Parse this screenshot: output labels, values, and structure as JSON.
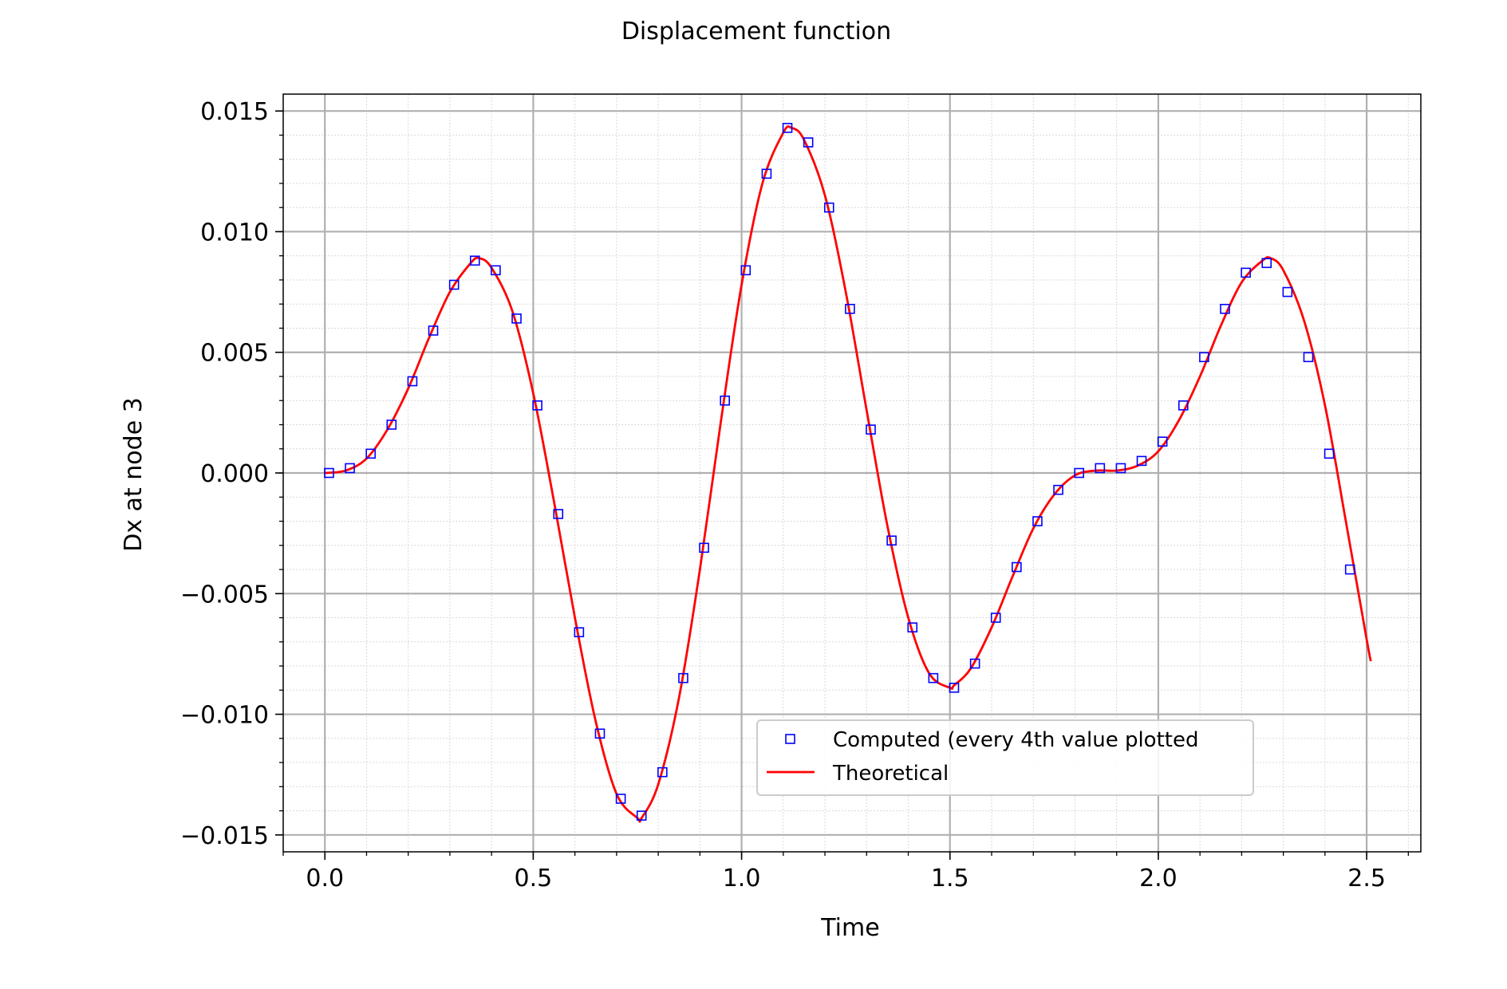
{
  "chart_data": {
    "type": "line",
    "title": "Displacement function",
    "xlabel": "Time",
    "ylabel": "Dx at node 3",
    "xlim": [
      -0.1,
      2.63
    ],
    "ylim": [
      -0.0157,
      0.0157
    ],
    "x_ticks": [
      0.0,
      0.5,
      1.0,
      1.5,
      2.0,
      2.5
    ],
    "x_tick_labels": [
      "0.0",
      "0.5",
      "1.0",
      "1.5",
      "2.0",
      "2.5"
    ],
    "y_ticks": [
      0.015,
      0.01,
      0.005,
      0.0,
      -0.005,
      -0.01,
      -0.015
    ],
    "y_tick_labels": [
      "0.015",
      "0.010",
      "0.005",
      "0.000",
      "−0.005",
      "−0.010",
      "−0.015"
    ],
    "grid": true,
    "minor_grid": true,
    "legend_position": "lower-center",
    "series": [
      {
        "name": "Computed (every 4th value plotted",
        "kind": "scatter",
        "marker": "square-open",
        "color": "#0000ff",
        "x": [
          0.01,
          0.06,
          0.11,
          0.16,
          0.21,
          0.26,
          0.31,
          0.36,
          0.41,
          0.46,
          0.51,
          0.56,
          0.61,
          0.66,
          0.71,
          0.76,
          0.81,
          0.86,
          0.91,
          0.96,
          1.01,
          1.06,
          1.11,
          1.16,
          1.21,
          1.26,
          1.31,
          1.36,
          1.41,
          1.46,
          1.51,
          1.56,
          1.61,
          1.66,
          1.71,
          1.76,
          1.81,
          1.86,
          1.91,
          1.96,
          2.01,
          2.06,
          2.11,
          2.16,
          2.21,
          2.26,
          2.31,
          2.36,
          2.41,
          2.46
        ],
        "y": [
          0.0,
          0.0002,
          0.0008,
          0.002,
          0.0038,
          0.0059,
          0.0078,
          0.0088,
          0.0084,
          0.0064,
          0.0028,
          -0.0017,
          -0.0066,
          -0.0108,
          -0.0135,
          -0.0142,
          -0.0124,
          -0.0085,
          -0.0031,
          0.003,
          0.0084,
          0.0124,
          0.0143,
          0.0137,
          0.011,
          0.0068,
          0.0018,
          -0.0028,
          -0.0064,
          -0.0085,
          -0.0089,
          -0.0079,
          -0.006,
          -0.0039,
          -0.002,
          -0.0007,
          0.0,
          0.0002,
          0.0002,
          0.0005,
          0.0013,
          0.0028,
          0.0048,
          0.0068,
          0.0083,
          0.0087,
          0.0075,
          0.0048,
          0.0008,
          -0.004
        ]
      },
      {
        "name": "Theoretical",
        "kind": "line",
        "color": "#ff0000",
        "x": [
          0.0,
          0.05,
          0.1,
          0.15,
          0.2,
          0.25,
          0.3,
          0.35,
          0.37,
          0.4,
          0.45,
          0.5,
          0.55,
          0.6,
          0.65,
          0.7,
          0.75,
          0.76,
          0.8,
          0.85,
          0.9,
          0.95,
          1.0,
          1.05,
          1.1,
          1.12,
          1.15,
          1.2,
          1.25,
          1.3,
          1.35,
          1.4,
          1.45,
          1.5,
          1.51,
          1.55,
          1.6,
          1.65,
          1.7,
          1.75,
          1.8,
          1.85,
          1.9,
          1.95,
          2.0,
          2.05,
          2.1,
          2.15,
          2.2,
          2.25,
          2.27,
          2.3,
          2.35,
          2.4,
          2.45,
          2.5,
          2.51
        ],
        "y": [
          0.0,
          0.0001,
          0.0006,
          0.0018,
          0.0035,
          0.0056,
          0.0075,
          0.0087,
          0.0089,
          0.0085,
          0.0067,
          0.0033,
          -0.0012,
          -0.006,
          -0.0103,
          -0.0133,
          -0.0143,
          -0.0143,
          -0.0129,
          -0.0093,
          -0.004,
          0.0021,
          0.0078,
          0.012,
          0.0141,
          0.0143,
          0.0138,
          0.0115,
          0.0075,
          0.0026,
          -0.0022,
          -0.006,
          -0.0083,
          -0.0089,
          -0.0088,
          -0.0081,
          -0.0064,
          -0.0043,
          -0.0023,
          -0.0009,
          -0.0001,
          0.0001,
          0.0001,
          0.0003,
          0.0009,
          0.0022,
          0.004,
          0.0061,
          0.0079,
          0.0088,
          0.0089,
          0.0084,
          0.0063,
          0.0028,
          -0.002,
          -0.0069,
          -0.0078
        ]
      }
    ]
  }
}
